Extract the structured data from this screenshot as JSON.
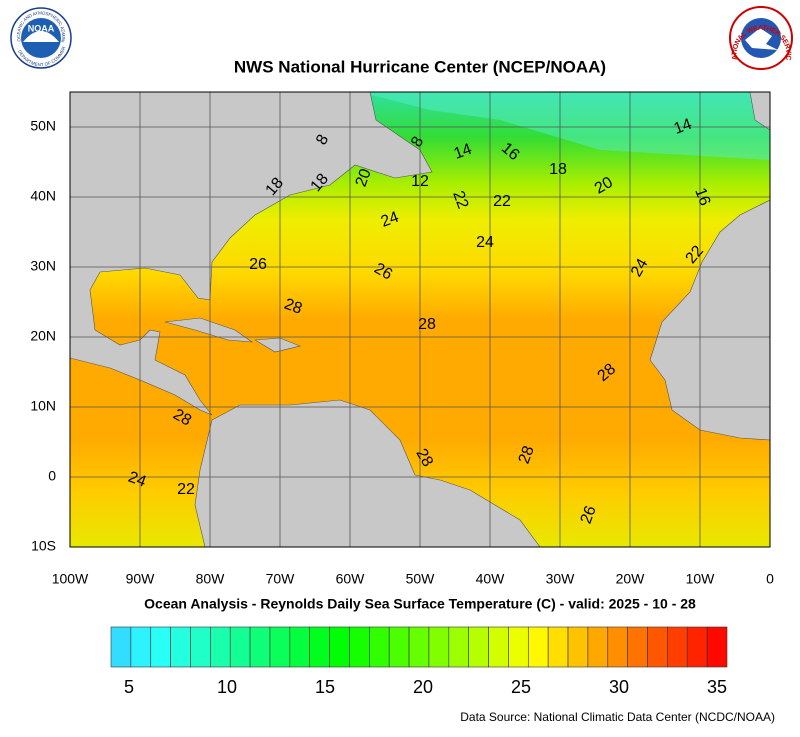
{
  "header": {
    "title": "NWS National Hurricane Center (NCEP/NOAA)",
    "noaa_logo": {
      "label": "NOAA",
      "ring": "NATIONAL OCEANIC AND ATMOSPHERIC ADMINISTRATION",
      "bottom": "U.S. DEPARTMENT OF COMMERCE"
    },
    "nws_logo": {
      "ring": "NATIONAL WEATHER SERVICE"
    }
  },
  "map": {
    "lat_labels": [
      "50N",
      "40N",
      "30N",
      "20N",
      "10N",
      "0",
      "10S"
    ],
    "lon_labels": [
      "100W",
      "90W",
      "80W",
      "70W",
      "60W",
      "50W",
      "40W",
      "30W",
      "20W",
      "10W",
      "0"
    ],
    "contour_labels": [
      "8",
      "8",
      "14",
      "16",
      "14",
      "18",
      "20",
      "16",
      "18",
      "18",
      "20",
      "12",
      "22",
      "22",
      "24",
      "24",
      "26",
      "26",
      "24",
      "22",
      "28",
      "28",
      "28",
      "28",
      "28",
      "28",
      "24",
      "22",
      "26"
    ]
  },
  "caption": "Ocean Analysis - Reynolds Daily Sea Surface Temperature (C) - valid: 2025 - 10 - 28",
  "colorbar": {
    "labels": [
      5,
      10,
      15,
      20,
      25,
      30,
      35
    ]
  },
  "footer": "Data Source: National Climatic Data Center (NCDC/NOAA)"
}
